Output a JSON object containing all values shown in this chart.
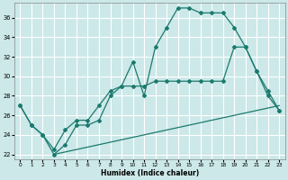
{
  "xlabel": "Humidex (Indice chaleur)",
  "bg_color": "#cce8e8",
  "grid_color": "#ffffff",
  "line_color": "#1a7a6e",
  "xlim": [
    -0.5,
    23.5
  ],
  "ylim": [
    21.5,
    37.5
  ],
  "xticks": [
    0,
    1,
    2,
    3,
    4,
    5,
    6,
    7,
    8,
    9,
    10,
    11,
    12,
    13,
    14,
    15,
    16,
    17,
    18,
    19,
    20,
    21,
    22,
    23
  ],
  "yticks": [
    22,
    24,
    26,
    28,
    30,
    32,
    34,
    36
  ],
  "line1_x": [
    0,
    1,
    2,
    3,
    4,
    5,
    6,
    7,
    8,
    9,
    10,
    11,
    12,
    13,
    14,
    15,
    16,
    17,
    18,
    19,
    20,
    21,
    22,
    23
  ],
  "line1_y": [
    27,
    25,
    24,
    22,
    23,
    25,
    25,
    25.5,
    28,
    29,
    31.5,
    28,
    33,
    35,
    37,
    37,
    36.5,
    36.5,
    36.5,
    35,
    33,
    30.5,
    28,
    26.5
  ],
  "line2_x": [
    0,
    1,
    2,
    3,
    4,
    5,
    6,
    7,
    8,
    9,
    10,
    11,
    12,
    13,
    14,
    15,
    16,
    17,
    18,
    19,
    20,
    21,
    22,
    23
  ],
  "line2_y": [
    27,
    25,
    24,
    22.5,
    24.5,
    25.5,
    25.5,
    27,
    28.5,
    29,
    29,
    29,
    29.5,
    29.5,
    29.5,
    29.5,
    29.5,
    29.5,
    29.5,
    33,
    33,
    30.5,
    28.5,
    26.5
  ],
  "line3_x": [
    3,
    23
  ],
  "line3_y": [
    22,
    27
  ],
  "marker_style": "D",
  "markersize": 2.0,
  "linewidth": 0.9
}
